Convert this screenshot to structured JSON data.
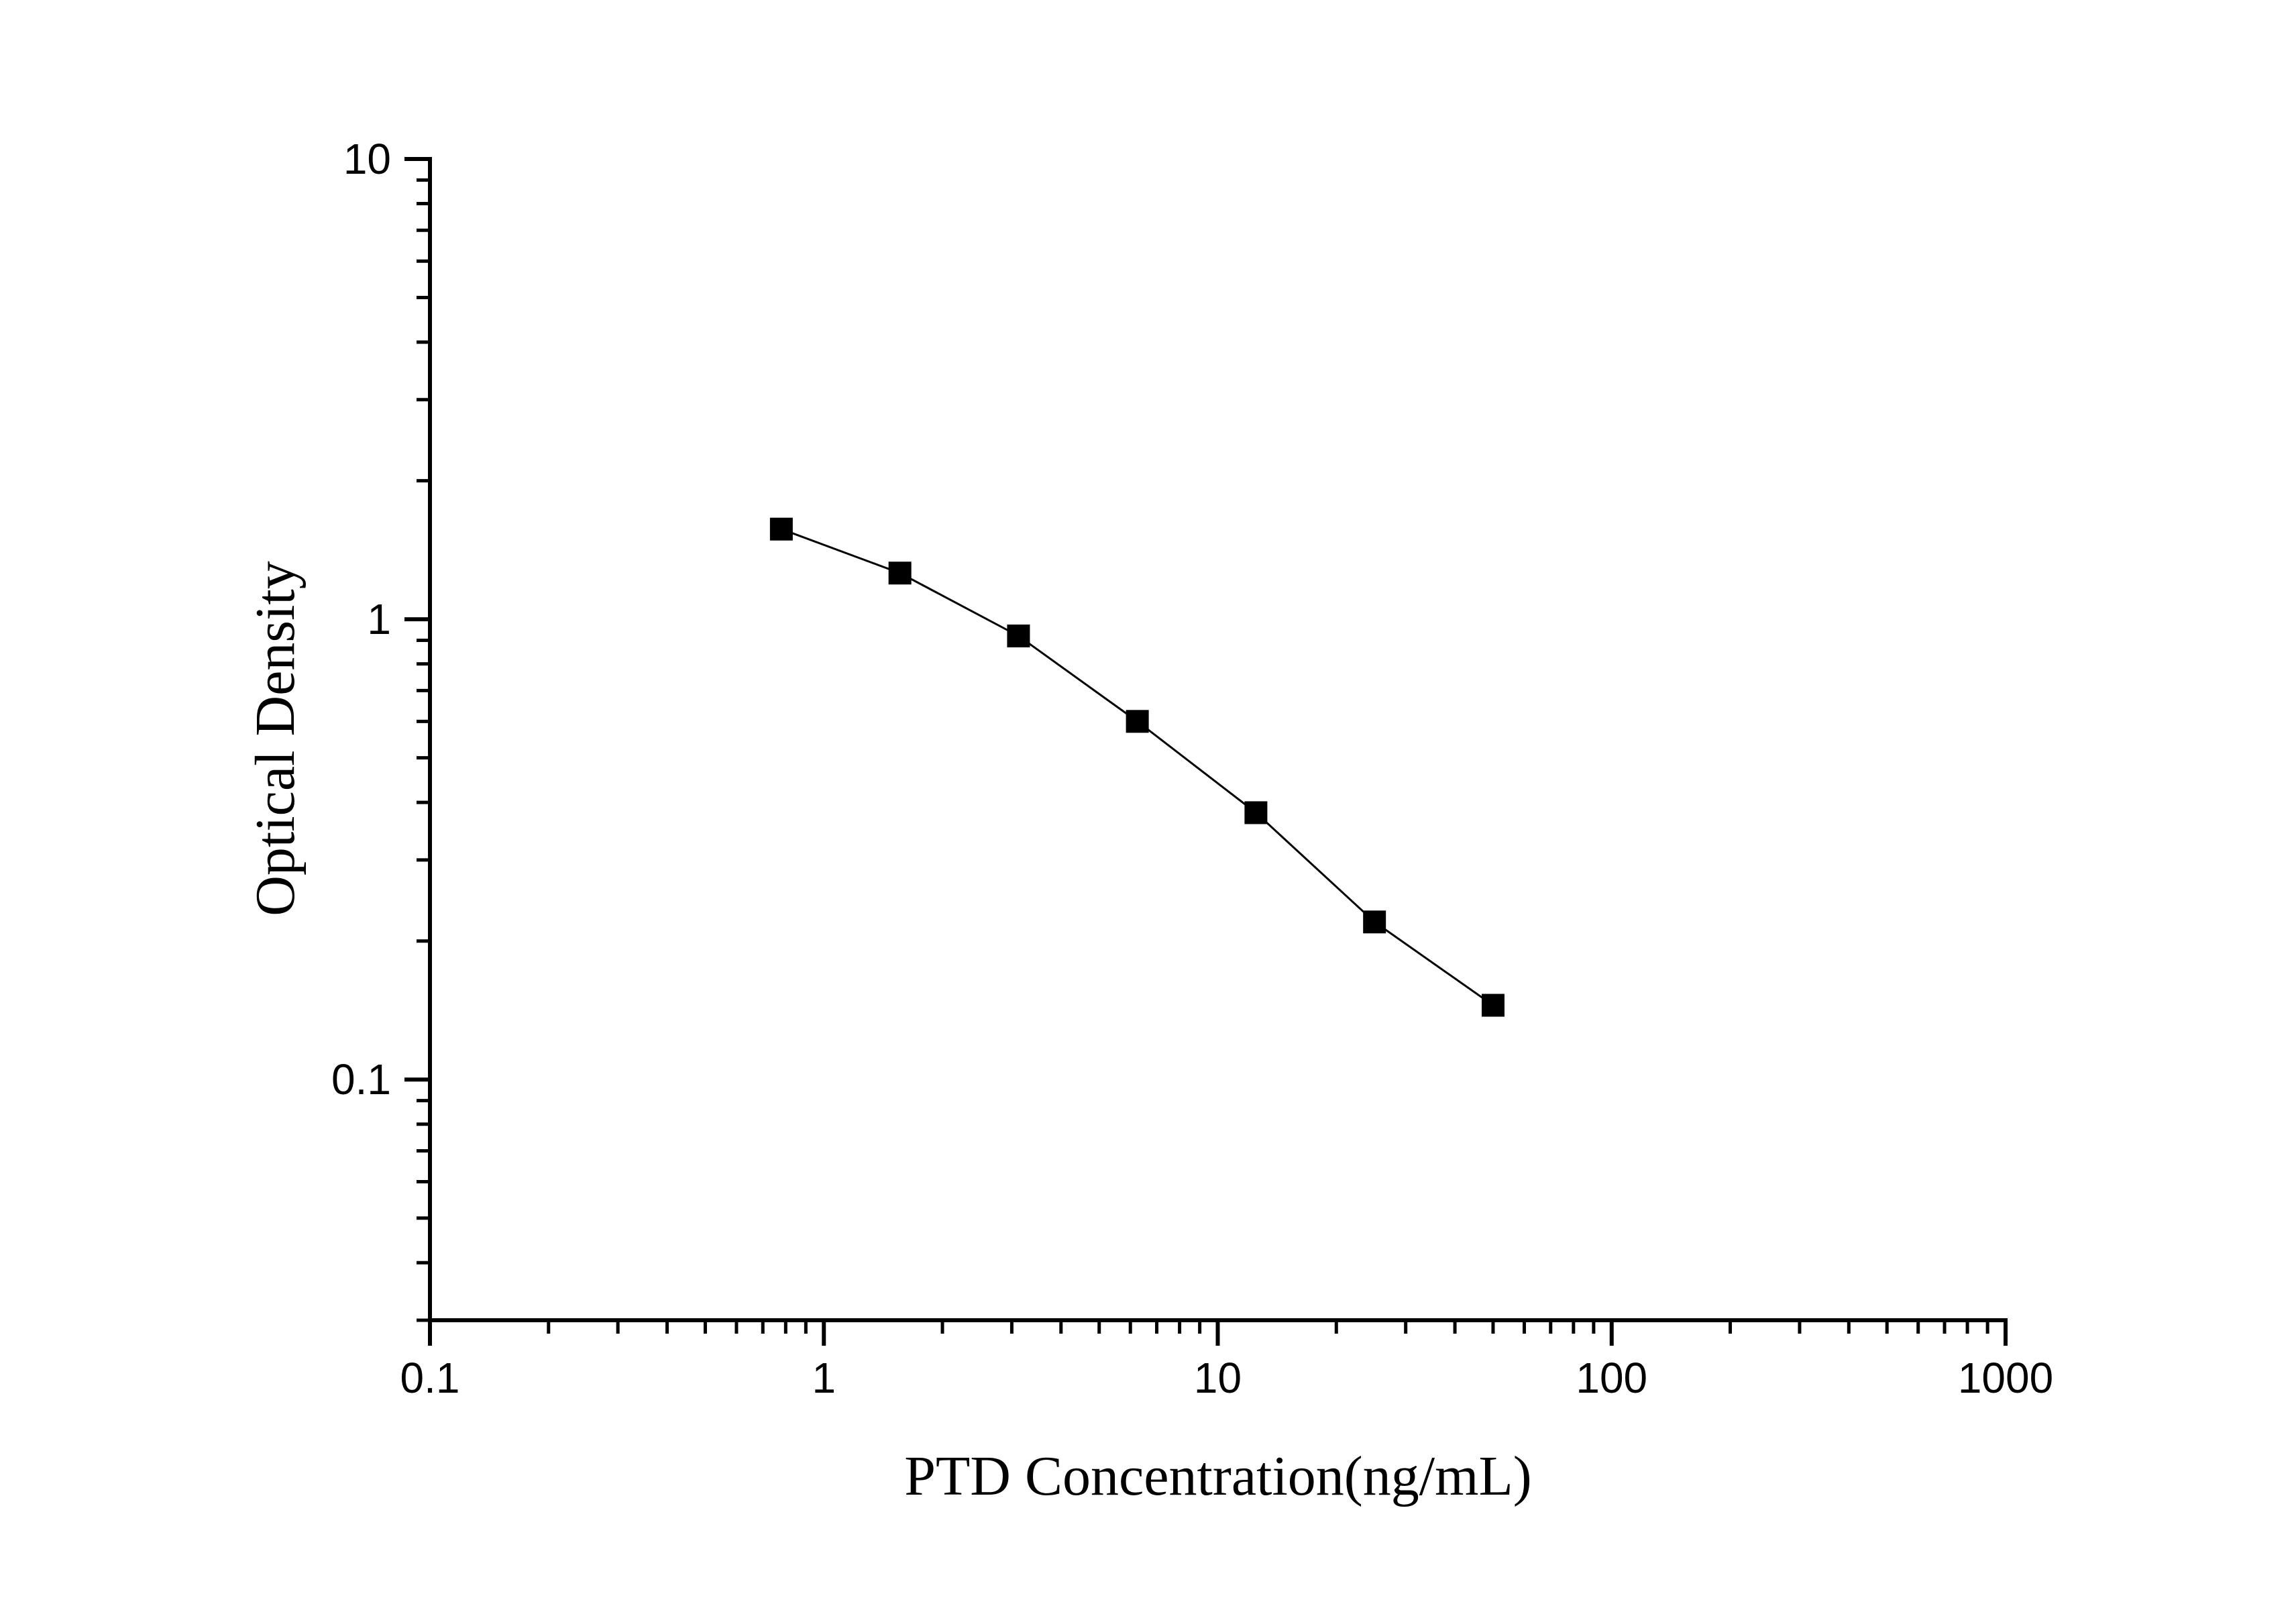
{
  "chart_data": {
    "type": "scatter",
    "title": "",
    "xlabel": "PTD Concentration(ng/mL)",
    "ylabel": "Optical Density",
    "xscale": "log",
    "yscale": "log",
    "xlim": [
      0.1,
      1000
    ],
    "ylim": [
      0.03,
      10
    ],
    "x_ticks": [
      0.1,
      1,
      10,
      100,
      1000
    ],
    "x_tick_labels": [
      "0.1",
      "1",
      "10",
      "100",
      "1000"
    ],
    "y_ticks": [
      0.1,
      1,
      10
    ],
    "y_tick_labels": [
      "0.1",
      "1",
      "10"
    ],
    "grid": false,
    "marker": "square",
    "line": true,
    "colors": {
      "series": "#000000",
      "axis": "#000000"
    },
    "series": [
      {
        "x": [
          0.78,
          1.56,
          3.12,
          6.25,
          12.5,
          25,
          50
        ],
        "y": [
          1.57,
          1.26,
          0.92,
          0.6,
          0.38,
          0.22,
          0.145
        ]
      }
    ]
  }
}
